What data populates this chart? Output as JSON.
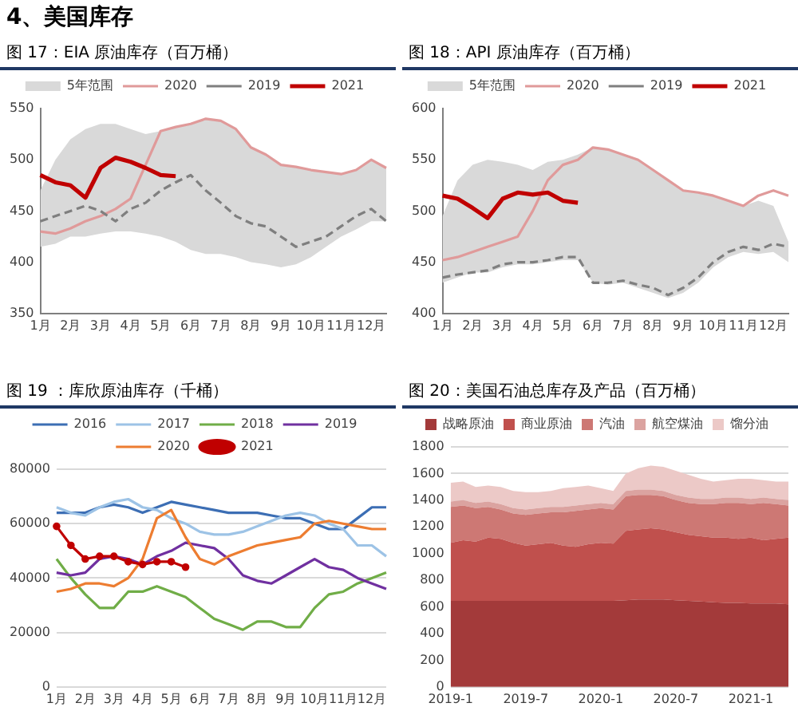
{
  "chart_data": [
    {
      "type": "line",
      "title": "图 17：EIA 原油库存（百万桶）",
      "annotations": [
        "4、美国库存"
      ],
      "categories": [
        "1月",
        null,
        "2月",
        null,
        "3月",
        null,
        "4月",
        null,
        "5月",
        null,
        "6月",
        null,
        "7月",
        null,
        "8月",
        null,
        "9月",
        null,
        "10月",
        null,
        "11月",
        null,
        "12月",
        null
      ],
      "ylim": [
        350,
        550
      ],
      "yticks": [
        350,
        400,
        450,
        500,
        550
      ],
      "grid": false,
      "legend": "top",
      "series": [
        {
          "name": "5年范围",
          "type": "area",
          "color": "#d9d9d9",
          "values": [
            null,
            null,
            null,
            null,
            null,
            null,
            null,
            null,
            null,
            null,
            null,
            null,
            null,
            null,
            null,
            null,
            null,
            null,
            null,
            null,
            null,
            null,
            null,
            null
          ],
          "upper": [
            470,
            500,
            520,
            530,
            535,
            535,
            530,
            525,
            528,
            532,
            535,
            540,
            538,
            530,
            512,
            505,
            495,
            493,
            490,
            488,
            486,
            490,
            500,
            492
          ],
          "lower": [
            415,
            418,
            425,
            425,
            428,
            430,
            430,
            428,
            425,
            420,
            412,
            408,
            408,
            405,
            400,
            398,
            395,
            398,
            405,
            415,
            425,
            432,
            440,
            440
          ]
        },
        {
          "name": "2020",
          "color": "#e09a9a",
          "values": [
            430,
            428,
            433,
            440,
            445,
            452,
            462,
            495,
            528,
            532,
            535,
            540,
            538,
            530,
            512,
            505,
            495,
            493,
            490,
            488,
            486,
            490,
            500,
            492
          ]
        },
        {
          "name": "2019",
          "color": "#7f7f7f",
          "line_style": "dashed",
          "values": [
            440,
            445,
            450,
            455,
            450,
            440,
            452,
            458,
            470,
            478,
            485,
            470,
            458,
            445,
            438,
            435,
            425,
            415,
            420,
            425,
            435,
            445,
            452,
            440
          ]
        },
        {
          "name": "2021",
          "color": "#c00000",
          "values": [
            485,
            478,
            475,
            463,
            492,
            502,
            498,
            492,
            485,
            484,
            null,
            null,
            null,
            null,
            null,
            null,
            null,
            null,
            null,
            null,
            null,
            null,
            null,
            null
          ]
        }
      ]
    },
    {
      "type": "line",
      "title": "图 18：API 原油库存（百万桶）",
      "categories": [
        "1月",
        null,
        "2月",
        null,
        "3月",
        null,
        "4月",
        null,
        "5月",
        null,
        "6月",
        null,
        "7月",
        null,
        "8月",
        null,
        "9月",
        null,
        "10月",
        null,
        "11月",
        null,
        "12月",
        null
      ],
      "ylim": [
        400,
        600
      ],
      "yticks": [
        400,
        450,
        500,
        550,
        600
      ],
      "grid": false,
      "legend": "top",
      "series": [
        {
          "name": "5年范围",
          "type": "area",
          "color": "#d9d9d9",
          "values": [
            null,
            null,
            null,
            null,
            null,
            null,
            null,
            null,
            null,
            null,
            null,
            null,
            null,
            null,
            null,
            null,
            null,
            null,
            null,
            null,
            null,
            null,
            null,
            null
          ],
          "upper": [
            495,
            530,
            545,
            550,
            548,
            545,
            540,
            548,
            550,
            555,
            562,
            560,
            555,
            550,
            540,
            530,
            520,
            518,
            515,
            510,
            505,
            510,
            505,
            470
          ],
          "lower": [
            430,
            435,
            440,
            440,
            445,
            448,
            448,
            450,
            452,
            452,
            430,
            428,
            430,
            425,
            420,
            415,
            420,
            430,
            445,
            455,
            460,
            458,
            460,
            450
          ]
        },
        {
          "name": "2020",
          "color": "#e09a9a",
          "values": [
            452,
            455,
            460,
            465,
            470,
            475,
            500,
            530,
            545,
            550,
            562,
            560,
            555,
            550,
            540,
            530,
            520,
            518,
            515,
            510,
            505,
            515,
            520,
            515
          ]
        },
        {
          "name": "2019",
          "color": "#7f7f7f",
          "line_style": "dashed",
          "values": [
            435,
            438,
            440,
            442,
            448,
            450,
            450,
            452,
            455,
            455,
            430,
            430,
            432,
            428,
            425,
            418,
            425,
            435,
            450,
            460,
            465,
            462,
            468,
            465
          ]
        },
        {
          "name": "2021",
          "color": "#c00000",
          "values": [
            515,
            512,
            503,
            493,
            512,
            518,
            516,
            518,
            510,
            508,
            null,
            null,
            null,
            null,
            null,
            null,
            null,
            null,
            null,
            null,
            null,
            null,
            null,
            null
          ]
        }
      ]
    },
    {
      "type": "line",
      "title": "图 19 ：库欣原油库存（千桶）",
      "categories": [
        "1月",
        null,
        "2月",
        null,
        "3月",
        null,
        "4月",
        null,
        "5月",
        null,
        "6月",
        null,
        "7月",
        null,
        "8月",
        null,
        "9月",
        null,
        "10月",
        null,
        "11月",
        null,
        "12月",
        null
      ],
      "ylim": [
        0,
        80000
      ],
      "yticks": [
        0,
        20000,
        40000,
        60000,
        80000
      ],
      "grid": "y",
      "legend": "top",
      "series": [
        {
          "name": "2016",
          "color": "#3c6eb4",
          "values": [
            64000,
            64000,
            64000,
            66000,
            67000,
            66000,
            64000,
            66000,
            68000,
            67000,
            66000,
            65000,
            64000,
            64000,
            64000,
            63000,
            62000,
            62000,
            60000,
            58000,
            58000,
            62000,
            66000,
            66000
          ]
        },
        {
          "name": "2017",
          "color": "#9dc3e6",
          "values": [
            66000,
            64000,
            63000,
            66000,
            68000,
            69000,
            66000,
            65000,
            62000,
            60000,
            57000,
            56000,
            56000,
            57000,
            59000,
            61000,
            63000,
            64000,
            63000,
            60000,
            58000,
            52000,
            52000,
            48000
          ]
        },
        {
          "name": "2018",
          "color": "#70ad47",
          "values": [
            47000,
            40000,
            34000,
            29000,
            29000,
            35000,
            35000,
            37000,
            35000,
            33000,
            29000,
            25000,
            23000,
            21000,
            24000,
            24000,
            22000,
            22000,
            29000,
            34000,
            35000,
            38000,
            40000,
            42000
          ]
        },
        {
          "name": "2019",
          "color": "#7030a0",
          "values": [
            42000,
            41000,
            42000,
            47000,
            48000,
            47000,
            45000,
            48000,
            50000,
            53000,
            52000,
            51000,
            47000,
            41000,
            39000,
            38000,
            41000,
            44000,
            47000,
            44000,
            43000,
            40000,
            38000,
            36000
          ]
        },
        {
          "name": "2020",
          "color": "#ed7d31",
          "values": [
            35000,
            36000,
            38000,
            38000,
            37000,
            40000,
            47000,
            62000,
            65000,
            55000,
            47000,
            45000,
            48000,
            50000,
            52000,
            53000,
            54000,
            55000,
            60000,
            61000,
            60000,
            59000,
            58000,
            58000
          ]
        },
        {
          "name": "2021",
          "color": "#c00000",
          "marker": "circle",
          "values": [
            59000,
            52000,
            47000,
            48000,
            48000,
            46000,
            45000,
            46000,
            46000,
            44000,
            null,
            null,
            null,
            null,
            null,
            null,
            null,
            null,
            null,
            null,
            null,
            null,
            null,
            null
          ]
        }
      ]
    },
    {
      "type": "area",
      "title": "图 20：美国石油总库存及产品（百万桶）",
      "stacked": true,
      "categories": [
        "2019-1",
        null,
        null,
        null,
        null,
        null,
        "2019-7",
        null,
        null,
        null,
        null,
        null,
        "2020-1",
        null,
        null,
        null,
        null,
        null,
        "2020-7",
        null,
        null,
        null,
        null,
        null,
        "2021-1",
        null,
        null,
        null
      ],
      "ylim": [
        0,
        1800
      ],
      "yticks": [
        0,
        200,
        400,
        600,
        800,
        1000,
        1200,
        1400,
        1600,
        1800
      ],
      "grid": "y",
      "legend": "top",
      "series": [
        {
          "name": "战略原油",
          "color": "#a33a3a",
          "values": [
            645,
            645,
            645,
            645,
            645,
            645,
            645,
            645,
            645,
            645,
            645,
            645,
            645,
            645,
            650,
            655,
            655,
            655,
            650,
            645,
            640,
            635,
            630,
            630,
            625,
            625,
            625,
            620
          ]
        },
        {
          "name": "商业原油",
          "color": "#c0504d",
          "values": [
            435,
            455,
            445,
            475,
            465,
            435,
            415,
            425,
            435,
            415,
            405,
            425,
            435,
            430,
            520,
            525,
            535,
            525,
            510,
            495,
            490,
            485,
            490,
            480,
            495,
            475,
            485,
            500
          ]
        },
        {
          "name": "汽油",
          "color": "#cd7874",
          "values": [
            270,
            260,
            250,
            230,
            220,
            220,
            230,
            230,
            230,
            250,
            270,
            260,
            260,
            255,
            260,
            260,
            250,
            250,
            240,
            240,
            240,
            250,
            260,
            270,
            250,
            280,
            260,
            240
          ]
        },
        {
          "name": "航空煤油",
          "color": "#dba3a0",
          "values": [
            40,
            40,
            40,
            40,
            40,
            40,
            40,
            40,
            40,
            40,
            40,
            40,
            40,
            40,
            40,
            40,
            40,
            40,
            40,
            40,
            40,
            40,
            40,
            40,
            40,
            40,
            40,
            40
          ]
        },
        {
          "name": "馏分油",
          "color": "#ecc9c7",
          "values": [
            140,
            140,
            120,
            120,
            130,
            130,
            130,
            120,
            120,
            140,
            140,
            140,
            110,
            100,
            130,
            160,
            180,
            180,
            180,
            170,
            150,
            130,
            130,
            140,
            150,
            130,
            130,
            140
          ]
        }
      ]
    }
  ]
}
